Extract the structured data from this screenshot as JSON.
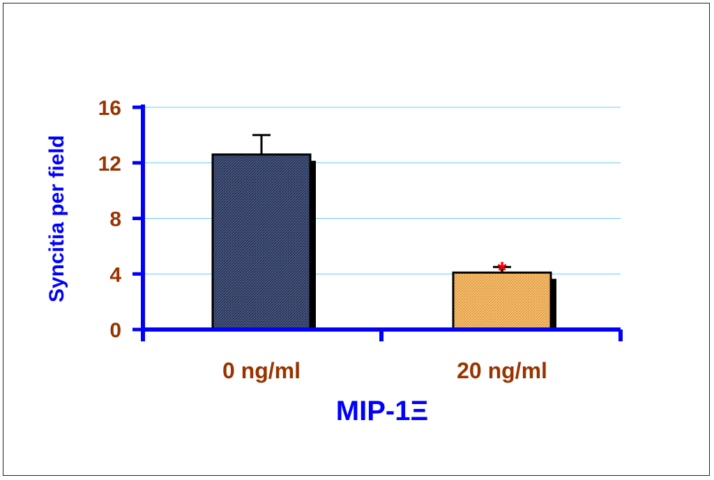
{
  "chart_data": {
    "type": "bar",
    "categories": [
      "0 ng/ml",
      "20 ng/ml"
    ],
    "values": [
      12.6,
      4.1
    ],
    "error_bars": [
      1.4,
      0.4
    ],
    "significance": [
      "",
      "*"
    ],
    "xlabel": "MIP-1Ξ",
    "ylabel": "Syncitia per field",
    "ylim": [
      0,
      16
    ],
    "yticks": [
      "0",
      "4",
      "8",
      "12",
      "16"
    ],
    "grid": true,
    "colors": {
      "axis": "#0000ff",
      "tick_labels": "#993300",
      "axis_titles": "#0000ff",
      "gridlines": "#66ccff",
      "bar_fill": [
        "#3a4a72",
        "#f0b55a"
      ],
      "significance": "#ff0000"
    }
  }
}
